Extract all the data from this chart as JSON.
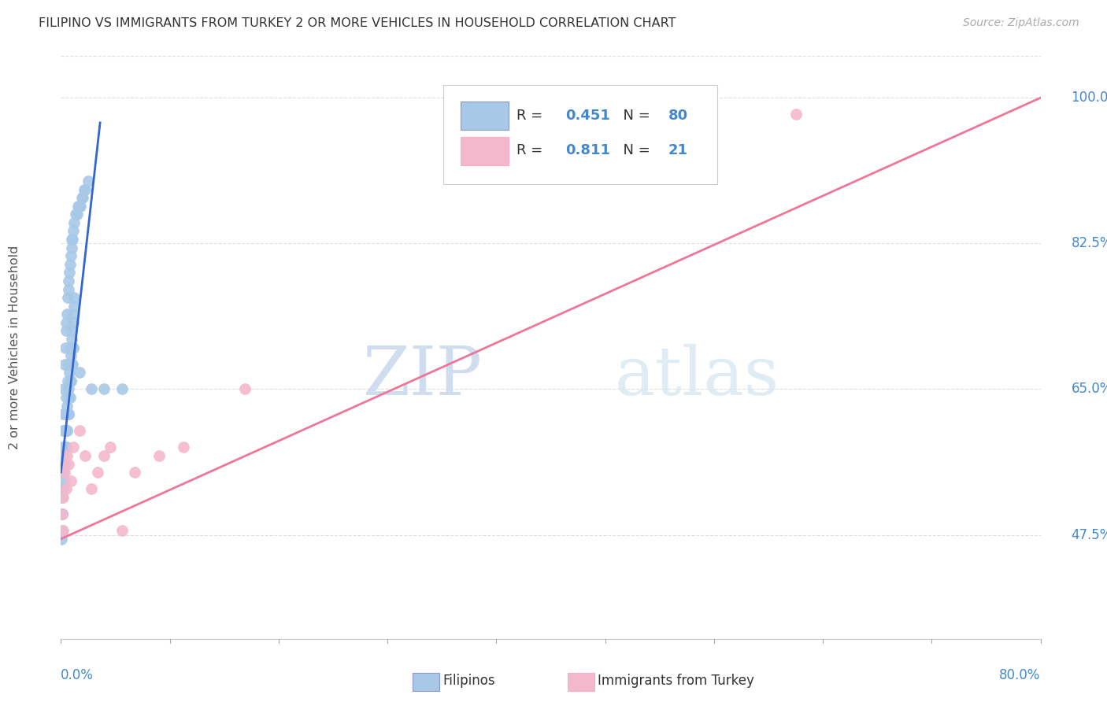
{
  "title": "FILIPINO VS IMMIGRANTS FROM TURKEY 2 OR MORE VEHICLES IN HOUSEHOLD CORRELATION CHART",
  "source": "Source: ZipAtlas.com",
  "ylabel": "2 or more Vehicles in Household",
  "right_yticks": [
    47.5,
    65.0,
    82.5,
    100.0
  ],
  "xlim": [
    0.0,
    80.0
  ],
  "ylim": [
    35.0,
    105.0
  ],
  "filipino_R": 0.451,
  "filipino_N": 80,
  "turkey_R": 0.811,
  "turkey_N": 21,
  "filipino_color": "#a8c8e8",
  "turkey_color": "#f4b8cc",
  "filipino_line_color": "#3366cc",
  "turkey_line_color": "#ee7799",
  "legend_label_1": "Filipinos",
  "legend_label_2": "Immigrants from Turkey",
  "watermark_zip": "ZIP",
  "watermark_atlas": "atlas",
  "background_color": "#ffffff",
  "title_color": "#333333",
  "source_color": "#aaaaaa",
  "axis_label_color": "#4488cc",
  "grid_color": "#e0e0e0",
  "filipino_x": [
    0.1,
    0.15,
    0.2,
    0.25,
    0.3,
    0.35,
    0.4,
    0.45,
    0.5,
    0.55,
    0.6,
    0.65,
    0.7,
    0.75,
    0.8,
    0.85,
    0.9,
    0.95,
    1.0,
    1.1,
    1.2,
    1.3,
    1.4,
    1.5,
    1.6,
    1.7,
    1.8,
    1.9,
    2.0,
    2.2,
    0.2,
    0.3,
    0.4,
    0.5,
    0.6,
    0.7,
    0.8,
    0.9,
    1.0,
    1.1,
    0.15,
    0.25,
    0.35,
    0.45,
    0.55,
    0.65,
    0.75,
    0.85,
    0.95,
    1.05,
    0.1,
    0.2,
    0.3,
    0.4,
    0.5,
    0.6,
    0.7,
    0.8,
    0.9,
    1.0,
    0.12,
    0.22,
    0.32,
    0.42,
    0.52,
    0.62,
    0.72,
    0.82,
    0.92,
    1.02,
    3.5,
    5.0,
    0.05,
    0.08,
    0.12,
    0.18,
    0.25,
    1.5,
    2.5,
    0.6
  ],
  "filipino_y": [
    58,
    60,
    62,
    65,
    68,
    70,
    72,
    73,
    74,
    76,
    77,
    78,
    79,
    80,
    81,
    82,
    83,
    83,
    84,
    85,
    86,
    86,
    87,
    87,
    87,
    88,
    88,
    89,
    89,
    90,
    55,
    58,
    60,
    63,
    65,
    67,
    69,
    71,
    73,
    75,
    57,
    60,
    62,
    64,
    66,
    68,
    70,
    72,
    74,
    76,
    50,
    53,
    56,
    58,
    60,
    62,
    64,
    66,
    68,
    70,
    52,
    54,
    56,
    58,
    60,
    62,
    64,
    66,
    68,
    70,
    65,
    65,
    47,
    48,
    50,
    53,
    56,
    67,
    65,
    62
  ],
  "turkey_x": [
    0.1,
    0.15,
    0.2,
    0.3,
    0.4,
    0.5,
    0.6,
    0.8,
    1.0,
    1.5,
    2.0,
    2.5,
    3.0,
    3.5,
    4.0,
    5.0,
    6.0,
    8.0,
    10.0,
    15.0,
    60.0
  ],
  "turkey_y": [
    50,
    48,
    52,
    55,
    53,
    57,
    56,
    54,
    58,
    60,
    57,
    53,
    55,
    57,
    58,
    48,
    55,
    57,
    58,
    65,
    98
  ],
  "filipinos_trend_x": [
    0.0,
    3.2
  ],
  "filipinos_trend_y": [
    55.0,
    97.0
  ],
  "turkey_trend_x": [
    0.0,
    80.0
  ],
  "turkey_trend_y": [
    47.0,
    100.0
  ]
}
